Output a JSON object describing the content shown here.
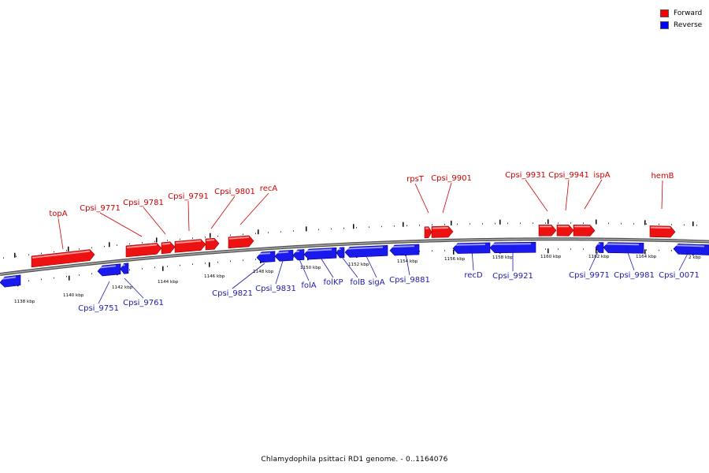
{
  "genome_caption": "Chlamydophila psittaci RD1 genome. - 0..1164076",
  "legend": [
    {
      "label": "Forward",
      "color": "#ff0000"
    },
    {
      "label": "Reverse",
      "color": "#0000ff"
    }
  ],
  "colors": {
    "forward_fill": "#ee1111",
    "forward_label": "#cc0000",
    "reverse_fill": "#1a1aee",
    "reverse_label": "#1a1aaa",
    "backbone": "#7a7a7a"
  },
  "scale_labels": [
    "1138 kbp",
    "1140 kbp",
    "1142 kbp",
    "1144 kbp",
    "1146 kbp",
    "1148 kbp",
    "1150 kbp",
    "1152 kbp",
    "1154 kbp",
    "1156 kbp",
    "1158 kbp",
    "1160 kbp",
    "1162 kbp",
    "1164 kbp",
    "2 kbp"
  ],
  "genes": [
    {
      "name": "topA",
      "strand": "forward"
    },
    {
      "name": "Cpsi_9771",
      "strand": "forward"
    },
    {
      "name": "Cpsi_9781",
      "strand": "forward"
    },
    {
      "name": "Cpsi_9791",
      "strand": "forward"
    },
    {
      "name": "Cpsi_9801",
      "strand": "forward"
    },
    {
      "name": "recA",
      "strand": "forward"
    },
    {
      "name": "rpsT",
      "strand": "forward"
    },
    {
      "name": "Cpsi_9901",
      "strand": "forward"
    },
    {
      "name": "Cpsi_9931",
      "strand": "forward"
    },
    {
      "name": "Cpsi_9941",
      "strand": "forward"
    },
    {
      "name": "ispA",
      "strand": "forward"
    },
    {
      "name": "hemB",
      "strand": "forward"
    },
    {
      "name": "Cpsi_9751",
      "strand": "reverse"
    },
    {
      "name": "Cpsi_9761",
      "strand": "reverse"
    },
    {
      "name": "Cpsi_9821",
      "strand": "reverse"
    },
    {
      "name": "Cpsi_9831",
      "strand": "reverse"
    },
    {
      "name": "folA",
      "strand": "reverse"
    },
    {
      "name": "folKP",
      "strand": "reverse"
    },
    {
      "name": "folB",
      "strand": "reverse"
    },
    {
      "name": "sigA",
      "strand": "reverse"
    },
    {
      "name": "Cpsi_9881",
      "strand": "reverse"
    },
    {
      "name": "recD",
      "strand": "reverse"
    },
    {
      "name": "Cpsi_9921",
      "strand": "reverse"
    },
    {
      "name": "Cpsi_9971",
      "strand": "reverse"
    },
    {
      "name": "Cpsi_9981",
      "strand": "reverse"
    },
    {
      "name": "Cpsi_0071",
      "strand": "reverse"
    }
  ]
}
